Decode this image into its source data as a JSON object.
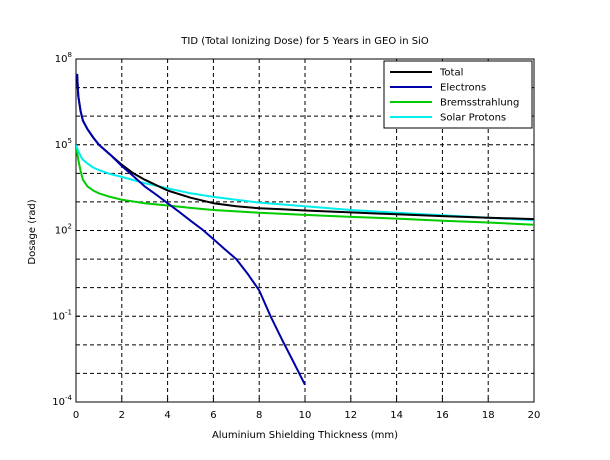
{
  "chart_data": {
    "type": "line",
    "title": "TID (Total Ionizing Dose) for 5 Years in GEO in SiO",
    "xlabel": "Aluminium Shielding Thickness (mm)",
    "ylabel": "Dosage (rad)",
    "xlim": [
      0,
      20
    ],
    "ylim": [
      0.0001,
      100000000
    ],
    "yscale": "log",
    "grid": true,
    "legend_position": "top-right",
    "x_ticks": [
      0,
      2,
      4,
      6,
      8,
      10,
      12,
      14,
      16,
      18,
      20
    ],
    "x_tick_labels": [
      "0",
      "2",
      "4",
      "6",
      "8",
      "10",
      "12",
      "14",
      "16",
      "18",
      "20"
    ],
    "y_ticks": [
      {
        "value": 0.0001,
        "base": "10",
        "exp": "-4"
      },
      {
        "value": 0.1,
        "base": "10",
        "exp": "-1"
      },
      {
        "value": 100,
        "base": "10",
        "exp": "2"
      },
      {
        "value": 100000,
        "base": "10",
        "exp": "5"
      },
      {
        "value": 100000000,
        "base": "10",
        "exp": "8"
      }
    ],
    "y_minor_grid": [
      0.001,
      0.01,
      1,
      10,
      1000,
      10000,
      1000000,
      10000000
    ],
    "series": [
      {
        "name": "Total",
        "color": "#000000",
        "x": [
          0.05,
          0.1,
          0.2,
          0.3,
          0.5,
          0.75,
          1,
          1.5,
          2,
          2.5,
          3,
          4,
          5,
          6,
          7,
          8,
          9,
          10,
          12,
          14,
          16,
          18,
          20
        ],
        "y": [
          30000000,
          5000000,
          1500000,
          700000,
          350000,
          180000,
          100000,
          45000,
          20000,
          10000,
          6000,
          2500,
          1400,
          900,
          700,
          600,
          550,
          500,
          430,
          370,
          320,
          280,
          250
        ]
      },
      {
        "name": "Electrons",
        "color": "#0000aa",
        "x": [
          0.05,
          0.1,
          0.2,
          0.3,
          0.5,
          0.75,
          1,
          1.5,
          2,
          2.5,
          3,
          3.5,
          4,
          4.5,
          5,
          5.5,
          6,
          6.5,
          7,
          7.5,
          8,
          8.5,
          9,
          9.5,
          10
        ],
        "y": [
          30000000,
          5000000,
          1500000,
          700000,
          350000,
          180000,
          100000,
          45000,
          18000,
          8000,
          3500,
          1800,
          900,
          450,
          220,
          110,
          50,
          22,
          10,
          3,
          0.8,
          0.1,
          0.015,
          0.0025,
          0.0004
        ]
      },
      {
        "name": "Bremsstrahlung",
        "color": "#00cc00",
        "x": [
          0,
          0.1,
          0.2,
          0.3,
          0.5,
          0.75,
          1,
          1.5,
          2,
          3,
          4,
          5,
          6,
          8,
          10,
          12,
          14,
          16,
          18,
          20
        ],
        "y": [
          90000,
          30000,
          12000,
          6000,
          3500,
          2500,
          2000,
          1500,
          1200,
          900,
          750,
          620,
          520,
          420,
          350,
          300,
          260,
          220,
          190,
          160
        ]
      },
      {
        "name": "Solar Protons",
        "color": "#00eeee",
        "x": [
          0,
          0.1,
          0.2,
          0.3,
          0.5,
          0.75,
          1,
          1.5,
          2,
          3,
          4,
          5,
          6,
          8,
          10,
          12,
          14,
          16,
          18,
          20
        ],
        "y": [
          100000,
          60000,
          40000,
          30000,
          22000,
          16000,
          13000,
          9500,
          7500,
          4500,
          3000,
          2000,
          1500,
          950,
          700,
          520,
          420,
          340,
          280,
          230
        ]
      }
    ]
  }
}
